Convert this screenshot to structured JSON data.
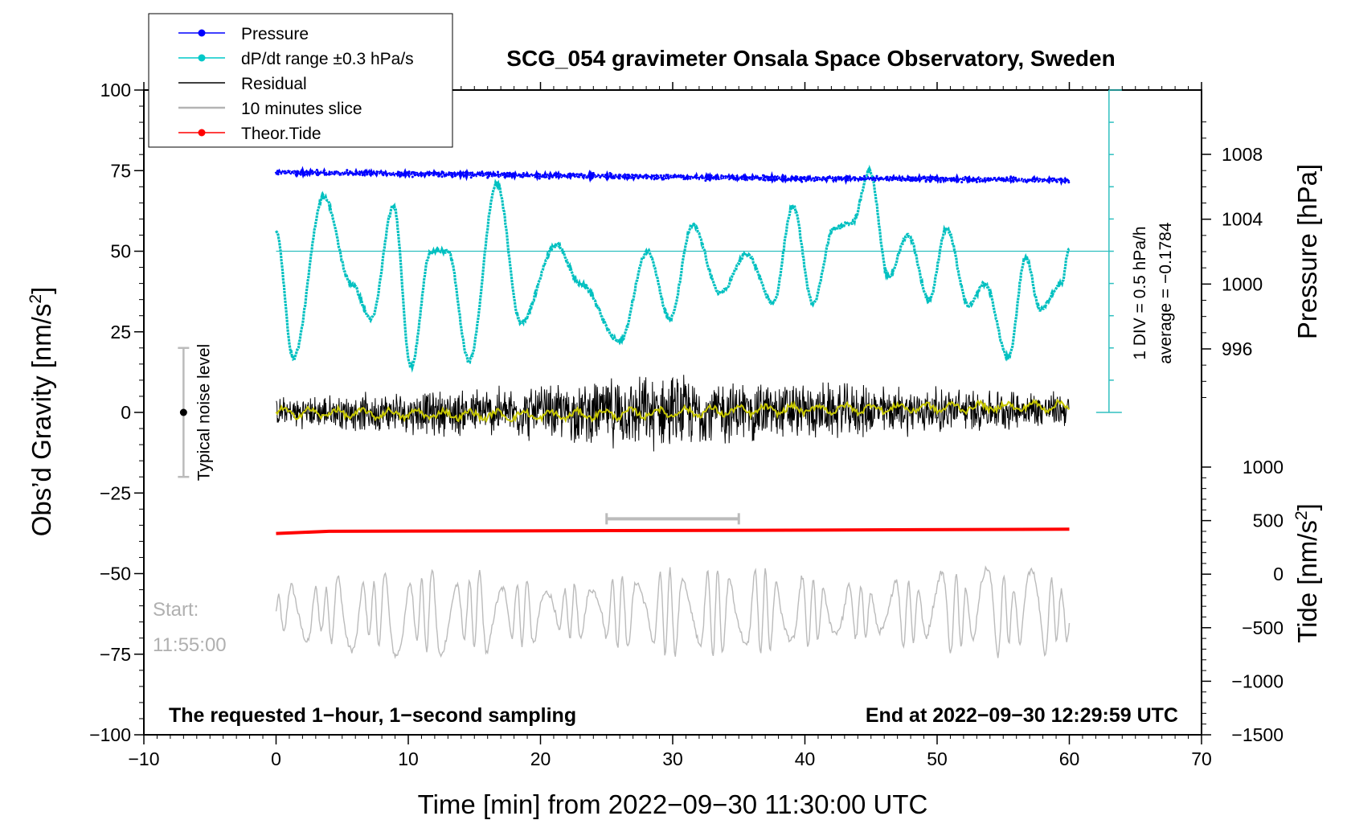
{
  "chart_data": {
    "type": "line",
    "title": "SCG_054 gravimeter Onsala Space Observatory, Sweden",
    "xlabel": "Time [min] from 2022−09−30 11:30:00 UTC",
    "ylabel_left": "Obs’d Gravity [nm/s",
    "ylabel_left_sup": "2",
    "ylabel_left_end": "]",
    "ylabel_right_pressure": "Pressure [hPa]",
    "ylabel_right_tide": "Tide [nm/s",
    "ylabel_right_tide_sup": "2",
    "ylabel_right_tide_end": "]",
    "xlim": [
      -10,
      70
    ],
    "ylim": [
      -100,
      100
    ],
    "x_ticks": [
      "−10",
      "0",
      "10",
      "20",
      "30",
      "40",
      "50",
      "60",
      "70"
    ],
    "x_tick_values": [
      -10,
      0,
      10,
      20,
      30,
      40,
      50,
      60,
      70
    ],
    "y_ticks": [
      "100",
      "75",
      "50",
      "25",
      "0",
      "−25",
      "−50",
      "−75",
      "−100"
    ],
    "y_tick_values": [
      100,
      75,
      50,
      25,
      0,
      -25,
      -50,
      -75,
      -100
    ],
    "pressure_ticks": [
      "1008",
      "1004",
      "1000",
      "996"
    ],
    "pressure_tick_values": [
      1008,
      1004,
      1000,
      996
    ],
    "tide_ticks": [
      "1000",
      "500",
      "0",
      "−500",
      "−1000",
      "−1500"
    ],
    "tide_tick_values": [
      1000,
      500,
      0,
      -500,
      -1000,
      -1500
    ],
    "legend": [
      {
        "label": "Pressure",
        "color": "#0000ff",
        "marker": true
      },
      {
        "label": "dP/dt range ±0.3 hPa/s",
        "color": "#00c8c8",
        "marker": true
      },
      {
        "label": "Residual",
        "color": "#000000",
        "marker": false
      },
      {
        "label": "10 minutes slice",
        "color": "#b4b4b4",
        "marker": false
      },
      {
        "label": "Theor.Tide",
        "color": "#ff0000",
        "marker": true
      }
    ],
    "colors": {
      "pressure": "#0000ff",
      "dpdt": "#00c0c0",
      "residual": "#000000",
      "smoothed": "#c8c800",
      "slice": "#bbbbbb",
      "tide": "#ff0000"
    },
    "series": [
      {
        "name": "Pressure",
        "unit": "hPa",
        "x": [
          0,
          10,
          20,
          30,
          40,
          50,
          60
        ],
        "values": [
          1006.9,
          1006.8,
          1006.7,
          1006.6,
          1006.5,
          1006.5,
          1006.4
        ]
      },
      {
        "name": "dP/dt (display level, nm/s² axis)",
        "x": [
          0,
          1.3,
          3.6,
          5.7,
          7.2,
          8.9,
          10.2,
          11.7,
          13.0,
          14.6,
          16.7,
          18.5,
          21.2,
          23.0,
          26.0,
          28.1,
          29.8,
          31.5,
          33.6,
          35.6,
          37.6,
          39.1,
          40.6,
          42.2,
          43.6,
          44.9,
          46.3,
          47.8,
          49.4,
          50.7,
          52.4,
          53.6,
          55.4,
          56.7,
          57.8,
          59.4,
          60
        ],
        "values": [
          56,
          17,
          67,
          40,
          29,
          64,
          14,
          50,
          50,
          16,
          71,
          28,
          52,
          40,
          22,
          50,
          29,
          58,
          37,
          49,
          34,
          64,
          34,
          57,
          59,
          75,
          42,
          55,
          35,
          57,
          33,
          40,
          17,
          48,
          32,
          40,
          51
        ]
      },
      {
        "name": "Residual",
        "x": [
          0,
          30,
          60
        ],
        "values": [
          0,
          0,
          1
        ],
        "noise_amplitude": [
          5,
          12,
          6
        ]
      },
      {
        "name": "Residual (smoothed)",
        "x": [
          0,
          20,
          40,
          60
        ],
        "values": [
          0,
          -1,
          1,
          2
        ]
      },
      {
        "name": "10 minutes slice",
        "x_start": 25,
        "x_end": 35,
        "level": -33
      },
      {
        "name": "Theor.Tide",
        "unit": "nm/s²",
        "x": [
          0,
          4,
          36.5,
          60
        ],
        "values": [
          380,
          400,
          410,
          420
        ]
      },
      {
        "name": "Start trace",
        "x": [
          0,
          60
        ],
        "level": -62,
        "amplitude": [
          8,
          14
        ]
      }
    ],
    "dpdt_scale_label": "1 DIV = 0.5 hPa/h",
    "dpdt_average_label": "average = −0.1784",
    "noise_label": "Typical noise level",
    "noise_range": [
      -20,
      20
    ],
    "start_label_1": "Start:",
    "start_label_2": "11:55:00",
    "footer_left": "The requested 1−hour, 1−second sampling",
    "footer_right": "End at 2022−09−30 12:29:59 UTC"
  }
}
